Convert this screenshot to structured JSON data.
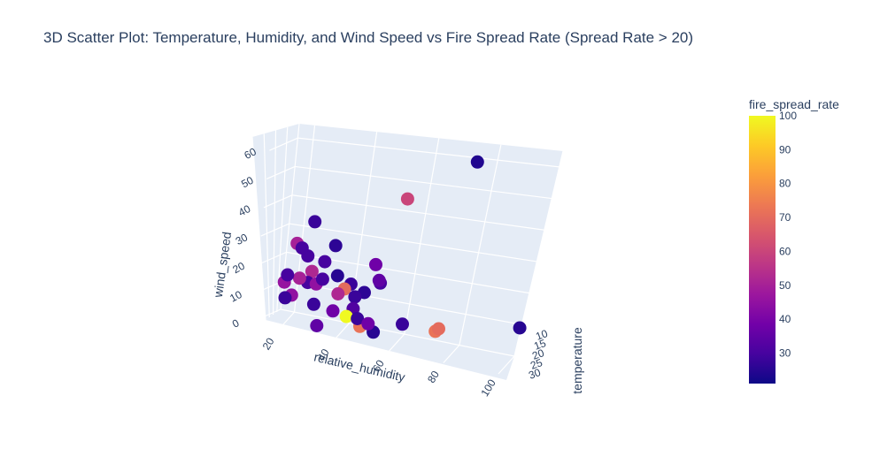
{
  "chart_data": {
    "type": "scatter3d",
    "title": "3D Scatter Plot: Temperature, Humidity, and Wind Speed vs Fire Spread Rate (Spread Rate > 20)",
    "axes": {
      "x": {
        "label": "relative_humidity",
        "ticks": [
          "20",
          "40",
          "60",
          "80",
          "100"
        ]
      },
      "y": {
        "label": "temperature",
        "ticks": [
          "10",
          "15",
          "20",
          "25",
          "30"
        ]
      },
      "z": {
        "label": "wind_speed",
        "ticks": [
          "0",
          "10",
          "20",
          "30",
          "40",
          "50",
          "60"
        ],
        "range": [
          0,
          65
        ]
      }
    },
    "colorbar": {
      "title": "fire_spread_rate",
      "range": [
        21,
        100
      ],
      "ticks": [
        "30",
        "40",
        "50",
        "60",
        "70",
        "80",
        "90",
        "100"
      ],
      "colors": [
        "#0d0887",
        "#46039f",
        "#7201a8",
        "#9c179e",
        "#bd3786",
        "#d8576b",
        "#ed7953",
        "#fb9f3a",
        "#fdca26",
        "#f0f921"
      ]
    },
    "points": [
      {
        "humidity": 75,
        "temperature": 20,
        "wind_speed": 62,
        "spread_rate": 24
      },
      {
        "humidity": 55,
        "temperature": 18,
        "wind_speed": 48,
        "spread_rate": 60
      },
      {
        "humidity": 100,
        "temperature": 28,
        "wind_speed": 10,
        "spread_rate": 25
      },
      {
        "humidity": 25,
        "temperature": 22,
        "wind_speed": 35,
        "spread_rate": 28
      },
      {
        "humidity": 33,
        "temperature": 22,
        "wind_speed": 28,
        "spread_rate": 26
      },
      {
        "humidity": 48,
        "temperature": 18,
        "wind_speed": 25,
        "spread_rate": 38
      },
      {
        "humidity": 50,
        "temperature": 18,
        "wind_speed": 20,
        "spread_rate": 35
      },
      {
        "humidity": 20,
        "temperature": 21,
        "wind_speed": 27,
        "spread_rate": 50
      },
      {
        "humidity": 22,
        "temperature": 20,
        "wind_speed": 26,
        "spread_rate": 30
      },
      {
        "humidity": 24,
        "temperature": 22,
        "wind_speed": 23,
        "spread_rate": 30
      },
      {
        "humidity": 30,
        "temperature": 22,
        "wind_speed": 22,
        "spread_rate": 30
      },
      {
        "humidity": 26,
        "temperature": 22,
        "wind_speed": 18,
        "spread_rate": 52
      },
      {
        "humidity": 35,
        "temperature": 22,
        "wind_speed": 18,
        "spread_rate": 25
      },
      {
        "humidity": 40,
        "temperature": 22,
        "wind_speed": 16,
        "spread_rate": 28
      },
      {
        "humidity": 45,
        "temperature": 22,
        "wind_speed": 14,
        "spread_rate": 26
      },
      {
        "humidity": 18,
        "temperature": 20,
        "wind_speed": 16,
        "spread_rate": 30
      },
      {
        "humidity": 17,
        "temperature": 21,
        "wind_speed": 13,
        "spread_rate": 46
      },
      {
        "humidity": 25,
        "temperature": 22,
        "wind_speed": 14,
        "spread_rate": 30
      },
      {
        "humidity": 22,
        "temperature": 22,
        "wind_speed": 15,
        "spread_rate": 50
      },
      {
        "humidity": 28,
        "temperature": 22,
        "wind_speed": 14,
        "spread_rate": 45
      },
      {
        "humidity": 30,
        "temperature": 22,
        "wind_speed": 16,
        "spread_rate": 30
      },
      {
        "humidity": 38,
        "temperature": 22,
        "wind_speed": 14,
        "spread_rate": 70
      },
      {
        "humidity": 36,
        "temperature": 22,
        "wind_speed": 12,
        "spread_rate": 52
      },
      {
        "humidity": 42,
        "temperature": 22,
        "wind_speed": 12,
        "spread_rate": 28
      },
      {
        "humidity": 50,
        "temperature": 22,
        "wind_speed": 18,
        "spread_rate": 30
      },
      {
        "humidity": 42,
        "temperature": 22,
        "wind_speed": 8,
        "spread_rate": 32
      },
      {
        "humidity": 40,
        "temperature": 22,
        "wind_speed": 5,
        "spread_rate": 100
      },
      {
        "humidity": 44,
        "temperature": 22,
        "wind_speed": 5,
        "spread_rate": 28
      },
      {
        "humidity": 48,
        "temperature": 22,
        "wind_speed": 4,
        "spread_rate": 38
      },
      {
        "humidity": 35,
        "temperature": 22,
        "wind_speed": 6,
        "spread_rate": 38
      },
      {
        "humidity": 28,
        "temperature": 22,
        "wind_speed": 7,
        "spread_rate": 28
      },
      {
        "humidity": 20,
        "temperature": 21,
        "wind_speed": 9,
        "spread_rate": 45
      },
      {
        "humidity": 18,
        "temperature": 20,
        "wind_speed": 8,
        "spread_rate": 28
      },
      {
        "humidity": 45,
        "temperature": 24,
        "wind_speed": 2,
        "spread_rate": 72
      },
      {
        "humidity": 50,
        "temperature": 24,
        "wind_speed": 1,
        "spread_rate": 25
      },
      {
        "humidity": 30,
        "temperature": 22,
        "wind_speed": 0,
        "spread_rate": 35
      },
      {
        "humidity": 60,
        "temperature": 22,
        "wind_speed": 6,
        "spread_rate": 28
      },
      {
        "humidity": 72,
        "temperature": 21,
        "wind_speed": 6,
        "spread_rate": 72
      },
      {
        "humidity": 73,
        "temperature": 21,
        "wind_speed": 7,
        "spread_rate": 70
      }
    ]
  }
}
